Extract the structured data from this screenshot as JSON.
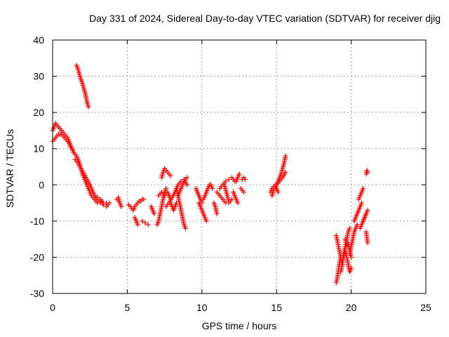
{
  "chart_data": {
    "type": "scatter",
    "title": "Day 331 of 2024, Sidereal Day-to-day VTEC variation (SDTVAR) for receiver djig",
    "xlabel": "GPS time / hours",
    "ylabel": "SDTVAR / TECUs",
    "xlim": [
      0,
      25
    ],
    "ylim": [
      -30,
      40
    ],
    "xticks": [
      0,
      5,
      10,
      15,
      20,
      25
    ],
    "yticks": [
      -30,
      -20,
      -10,
      0,
      10,
      20,
      30,
      40
    ],
    "grid": true,
    "marker": "+",
    "color": "#ff0000",
    "segments": [
      {
        "x": [
          0.0,
          0.2,
          0.4,
          0.6,
          0.8,
          1.0,
          1.2,
          1.4,
          1.6,
          1.8,
          2.0,
          2.2,
          2.4,
          2.6,
          2.8,
          3.0,
          3.2,
          3.4,
          3.6
        ],
        "y": [
          15,
          17,
          16,
          15,
          14,
          13,
          11,
          9,
          8,
          6,
          3,
          1,
          -1,
          -3,
          -4,
          -5,
          -5,
          -5,
          -5
        ]
      },
      {
        "x": [
          0.0,
          0.1,
          0.2,
          0.3,
          0.4,
          0.5,
          0.6,
          0.7,
          0.8,
          0.9,
          1.0,
          1.1,
          1.2,
          1.3,
          1.4,
          1.5
        ],
        "y": [
          12,
          12.5,
          13,
          13.5,
          14,
          14,
          14,
          13.5,
          13,
          12.5,
          12,
          11.5,
          10.5,
          10,
          9,
          8.5
        ]
      },
      {
        "x": [
          1.6,
          1.7,
          1.8,
          1.9,
          2.0,
          2.1,
          2.2,
          2.3,
          2.4
        ],
        "y": [
          33,
          32,
          30.5,
          29,
          28,
          26.5,
          25,
          23,
          21.5
        ]
      },
      {
        "x": [
          1.5,
          1.7,
          1.9,
          2.1,
          2.3,
          2.5,
          2.7,
          2.9,
          3.1,
          3.3
        ],
        "y": [
          7,
          6,
          4.5,
          3,
          1.5,
          0,
          -2,
          -3.5,
          -4.5,
          -4.5
        ]
      },
      {
        "x": [
          3.0,
          3.2,
          3.4,
          3.6,
          3.8
        ],
        "y": [
          -3.5,
          -4,
          -5.5,
          -6,
          -5
        ]
      },
      {
        "x": [
          4.3,
          4.4,
          4.5,
          4.6
        ],
        "y": [
          -4,
          -3.5,
          -5,
          -6
        ]
      },
      {
        "x": [
          5.1,
          5.2,
          5.3,
          5.4,
          5.5,
          5.6,
          5.7,
          5.8,
          5.9,
          6.0,
          6.1
        ],
        "y": [
          -5.5,
          -6,
          -6.5,
          -7,
          -6,
          -5.5,
          -5,
          -4.5,
          -4.5,
          -4,
          -4
        ]
      },
      {
        "x": [
          5.5,
          5.6,
          5.7
        ],
        "y": [
          -9,
          -10,
          -11
        ]
      },
      {
        "x": [
          6.0,
          6.2,
          6.4
        ],
        "y": [
          -10,
          -10.5,
          -11
        ]
      },
      {
        "x": [
          6.6,
          6.8
        ],
        "y": [
          -6,
          -8
        ]
      },
      {
        "x": [
          7.0,
          7.1,
          7.2,
          7.3,
          7.4,
          7.5,
          7.6
        ],
        "y": [
          -11,
          -10,
          -8,
          -6,
          -4,
          -2,
          -1
        ]
      },
      {
        "x": [
          7.1,
          7.2,
          7.3,
          7.4,
          7.5,
          7.6,
          7.7,
          7.8,
          7.9
        ],
        "y": [
          -3,
          -2.5,
          -2,
          -2.5,
          -3,
          -2.5,
          -2,
          -3,
          -4
        ]
      },
      {
        "x": [
          7.3,
          7.4,
          7.5,
          7.6,
          7.7,
          7.8,
          7.9
        ],
        "y": [
          2,
          3.5,
          4.5,
          4,
          3.5,
          3,
          2.5
        ]
      },
      {
        "x": [
          7.6,
          7.8,
          8.0,
          8.2,
          8.4,
          8.6,
          8.8,
          9.0
        ],
        "y": [
          -6,
          -5,
          -3.5,
          -2,
          0,
          1,
          1.5,
          0
        ]
      },
      {
        "x": [
          7.9,
          8.0,
          8.1,
          8.2,
          8.3
        ],
        "y": [
          -5,
          -6,
          -7,
          -6,
          -5
        ]
      },
      {
        "x": [
          8.3,
          8.4,
          8.5,
          8.6,
          8.7,
          8.8,
          8.9
        ],
        "y": [
          -1,
          -3,
          -5,
          -7,
          -9,
          -11,
          -12
        ]
      },
      {
        "x": [
          8.4,
          8.6,
          8.8,
          9.0
        ],
        "y": [
          -3,
          -1,
          1,
          2
        ]
      },
      {
        "x": [
          9.6,
          9.7,
          9.8,
          9.9,
          10.0
        ],
        "y": [
          -1,
          -2,
          -3,
          -4,
          -5
        ]
      },
      {
        "x": [
          9.8,
          9.9,
          10.0,
          10.1,
          10.2,
          10.3
        ],
        "y": [
          -5,
          -6,
          -7,
          -8,
          -9,
          -10
        ]
      },
      {
        "x": [
          10.1,
          10.2,
          10.3,
          10.4,
          10.5,
          10.6,
          10.7
        ],
        "y": [
          -4,
          -3,
          -2,
          -1,
          0,
          0,
          -1
        ]
      },
      {
        "x": [
          10.8,
          10.9,
          11.0
        ],
        "y": [
          -5,
          -6,
          -8
        ]
      },
      {
        "x": [
          11.0,
          11.2,
          11.4,
          11.6,
          11.8,
          12.0
        ],
        "y": [
          -2,
          -3,
          -4,
          -5,
          -5,
          -4
        ]
      },
      {
        "x": [
          11.2,
          11.4,
          11.6,
          11.8,
          12.0,
          12.2
        ],
        "y": [
          -1,
          0,
          1,
          1.5,
          2,
          1
        ]
      },
      {
        "x": [
          11.5,
          11.6,
          11.7,
          11.8
        ],
        "y": [
          0,
          -1.5,
          -3,
          -4.5
        ]
      },
      {
        "x": [
          12.1,
          12.2,
          12.3,
          12.4
        ],
        "y": [
          -2,
          -3,
          -4,
          -5
        ]
      },
      {
        "x": [
          12.3,
          12.4,
          12.5
        ],
        "y": [
          1,
          2,
          3
        ]
      },
      {
        "x": [
          12.6,
          12.7,
          12.8
        ],
        "y": [
          -1,
          -1.5,
          -2
        ]
      },
      {
        "x": [
          12.7,
          12.8,
          12.9
        ],
        "y": [
          1.5,
          2,
          1.5
        ]
      },
      {
        "x": [
          14.7,
          14.8,
          14.9,
          15.0,
          15.1,
          15.2,
          15.3,
          15.4,
          15.5,
          15.6
        ],
        "y": [
          -3,
          -1.5,
          -1,
          0,
          1,
          2,
          3,
          4.5,
          6,
          8
        ]
      },
      {
        "x": [
          14.6,
          14.7,
          14.8,
          14.9,
          15.0,
          15.1
        ],
        "y": [
          -2,
          -1,
          -0.5,
          0,
          -1,
          -2
        ]
      },
      {
        "x": [
          15.0,
          15.2,
          15.4,
          15.6
        ],
        "y": [
          0,
          1,
          2,
          3.5
        ]
      },
      {
        "x": [
          19.0,
          19.1,
          19.2,
          19.3
        ],
        "y": [
          -27,
          -25,
          -22,
          -20
        ]
      },
      {
        "x": [
          19.0,
          19.1,
          19.2,
          19.3,
          19.4
        ],
        "y": [
          -14,
          -16,
          -18,
          -20,
          -22
        ]
      },
      {
        "x": [
          19.3,
          19.4,
          19.5,
          19.6,
          19.7,
          19.8,
          19.9
        ],
        "y": [
          -24,
          -22,
          -19,
          -17,
          -15,
          -13,
          -12
        ]
      },
      {
        "x": [
          19.5,
          19.6,
          19.7,
          19.8,
          19.9,
          20.0
        ],
        "y": [
          -20,
          -18,
          -20,
          -22,
          -24,
          -23
        ]
      },
      {
        "x": [
          19.6,
          19.7,
          19.8,
          19.9,
          20.0
        ],
        "y": [
          -15,
          -17,
          -16,
          -18,
          -20
        ]
      },
      {
        "x": [
          19.9,
          20.0,
          20.1,
          20.2,
          20.3,
          20.4
        ],
        "y": [
          -19,
          -17,
          -15,
          -13,
          -12,
          -11
        ]
      },
      {
        "x": [
          20.2,
          20.3,
          20.4,
          20.5,
          20.6,
          20.7
        ],
        "y": [
          -10,
          -9,
          -8,
          -7,
          -6,
          -5
        ]
      },
      {
        "x": [
          20.5,
          20.6,
          20.7,
          20.8
        ],
        "y": [
          -4,
          -3,
          -2,
          -1
        ]
      },
      {
        "x": [
          20.6,
          20.7,
          20.8,
          20.9,
          21.0
        ],
        "y": [
          -12,
          -11,
          -10,
          -9,
          -8
        ]
      },
      {
        "x": [
          20.8,
          20.9,
          21.0,
          21.1
        ],
        "y": [
          -10,
          -9,
          -8,
          -7
        ]
      },
      {
        "x": [
          21.0,
          21.1
        ],
        "y": [
          -13,
          -16
        ]
      },
      {
        "x": [
          21.0,
          21.05,
          21.1
        ],
        "y": [
          3,
          4,
          3.5
        ]
      }
    ]
  }
}
